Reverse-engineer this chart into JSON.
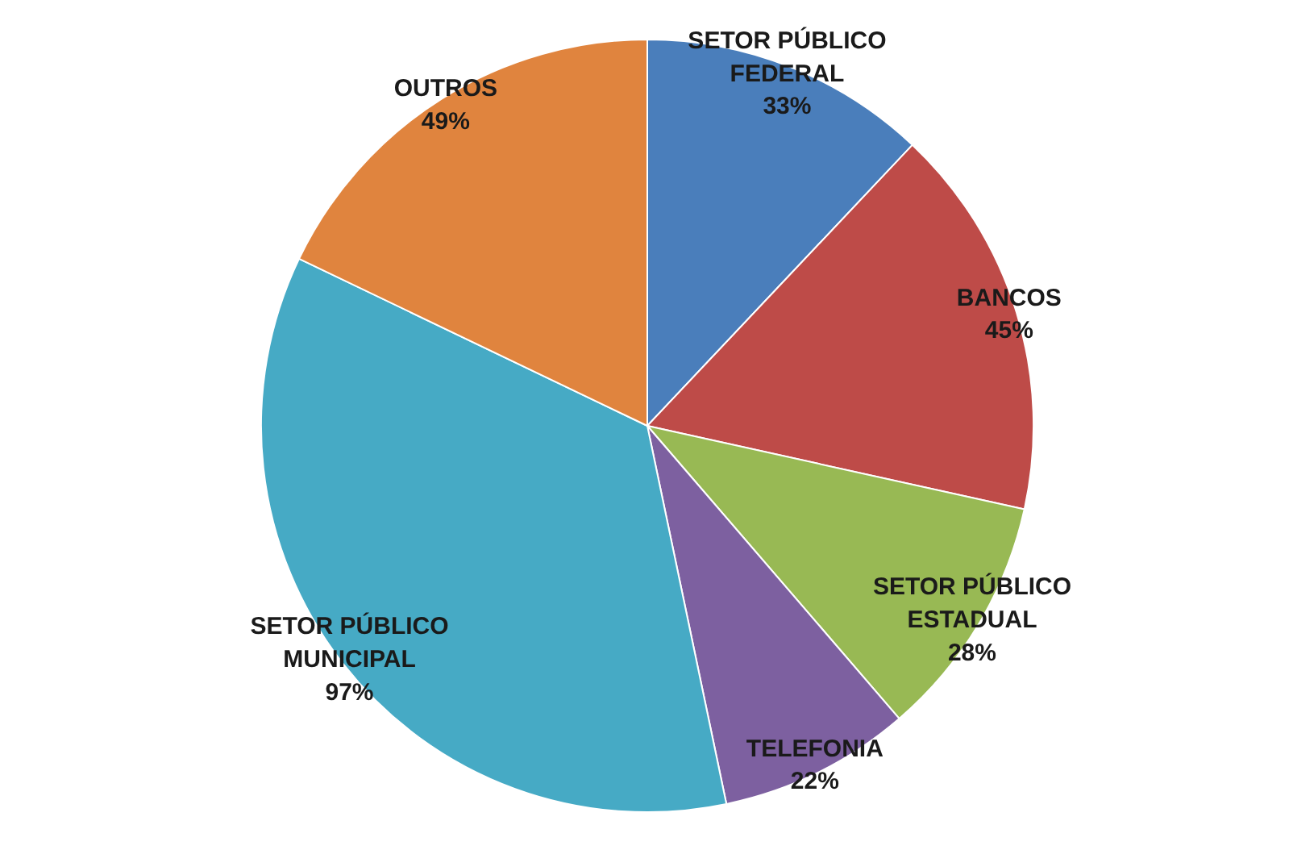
{
  "chart_data": {
    "type": "pie",
    "categories": [
      "SETOR PÚBLICO FEDERAL",
      "BANCOS",
      "SETOR PÚBLICO ESTADUAL",
      "TELEFONIA",
      "SETOR PÚBLICO MUNICIPAL",
      "OUTROS"
    ],
    "values": [
      33,
      45,
      28,
      22,
      97,
      49
    ],
    "colors": [
      "#4a7ebb",
      "#be4b48",
      "#98b954",
      "#7d60a0",
      "#46aac5",
      "#e0843e"
    ],
    "value_labels": [
      "33%",
      "45%",
      "28%",
      "22%",
      "97%",
      "49%"
    ]
  }
}
